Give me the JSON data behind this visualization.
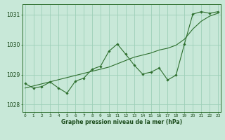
{
  "xlabel": "Graphe pression niveau de la mer (hPa)",
  "background_color": "#c8e8d8",
  "grid_color": "#9ecfb8",
  "line_color": "#2d6e2d",
  "text_color": "#1a4a1a",
  "x": [
    0,
    1,
    2,
    3,
    4,
    5,
    6,
    7,
    8,
    9,
    10,
    11,
    12,
    13,
    14,
    15,
    16,
    17,
    18,
    19,
    20,
    21,
    22,
    23
  ],
  "y_jagged": [
    1028.7,
    1028.55,
    1028.6,
    1028.75,
    1028.55,
    1028.38,
    1028.78,
    1028.88,
    1029.18,
    1029.28,
    1029.78,
    1030.02,
    1029.68,
    1029.32,
    1029.02,
    1029.08,
    1029.22,
    1028.82,
    1028.98,
    1030.02,
    1031.02,
    1031.1,
    1031.05,
    1031.1
  ],
  "y_trend": [
    1028.55,
    1028.62,
    1028.69,
    1028.76,
    1028.83,
    1028.9,
    1028.97,
    1029.04,
    1029.11,
    1029.18,
    1029.25,
    1029.36,
    1029.47,
    1029.58,
    1029.65,
    1029.72,
    1029.82,
    1029.88,
    1029.98,
    1030.18,
    1030.52,
    1030.78,
    1030.95,
    1031.05
  ],
  "ylim": [
    1027.75,
    1031.35
  ],
  "yticks": [
    1028,
    1029,
    1030,
    1031
  ],
  "xticks": [
    0,
    1,
    2,
    3,
    4,
    5,
    6,
    7,
    8,
    9,
    10,
    11,
    12,
    13,
    14,
    15,
    16,
    17,
    18,
    19,
    20,
    21,
    22,
    23
  ],
  "xlim": [
    -0.3,
    23.3
  ]
}
